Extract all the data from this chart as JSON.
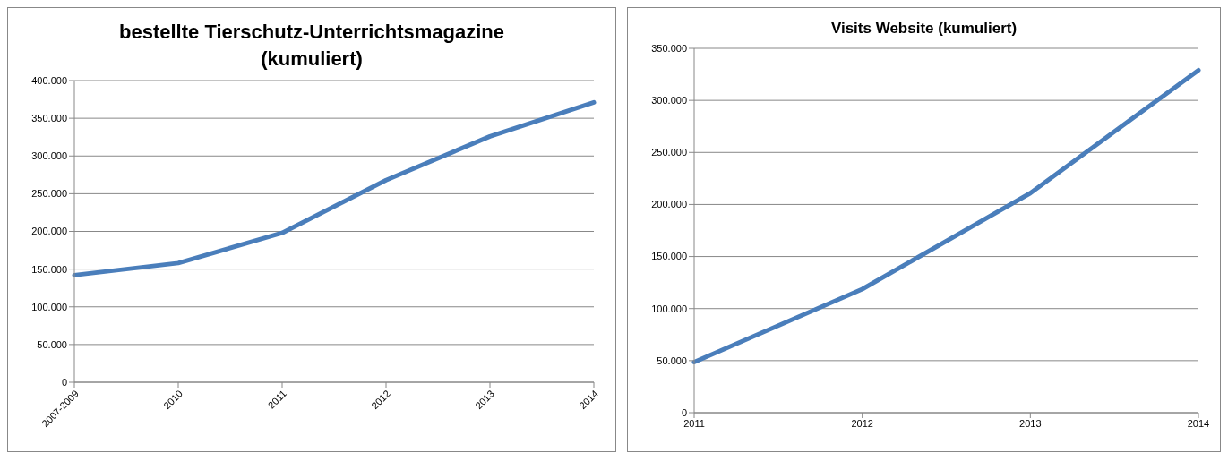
{
  "chart_data": [
    {
      "type": "line",
      "title": "bestellte Tierschutz-Unterrichtsmagazine (kumuliert)",
      "categories": [
        "2007-2009",
        "2010",
        "2011",
        "2012",
        "2013",
        "2014"
      ],
      "series": [
        {
          "color": "#4a7ebb",
          "values": [
            142000,
            158000,
            198000,
            268000,
            326000,
            371000
          ]
        }
      ],
      "ylim": [
        0,
        400000
      ],
      "yticks": [
        0,
        {
          "value": 50000,
          "label": "50.000"
        },
        {
          "value": 100000,
          "label": "100.000"
        },
        {
          "value": 150000,
          "label": "150.000"
        },
        {
          "value": 200000,
          "label": "200.000"
        },
        {
          "value": 250000,
          "label": "250.000"
        },
        {
          "value": 300000,
          "label": "300.000"
        },
        {
          "value": 350000,
          "label": "350.000"
        },
        {
          "value": 400000,
          "label": "400.000"
        }
      ],
      "grid": "y",
      "legend": false,
      "marker": "none",
      "line_style": "solid"
    },
    {
      "type": "line",
      "title": "Visits Website (kumuliert)",
      "categories": [
        "2011",
        "2012",
        "2013",
        "2014"
      ],
      "series": [
        {
          "color": "#4a7ebb",
          "values": [
            48600,
            118700,
            210900,
            329000
          ]
        }
      ],
      "ylim": [
        0,
        350000
      ],
      "yticks": [
        0,
        {
          "value": 50000,
          "label": "50.000"
        },
        {
          "value": 100000,
          "label": "100.000"
        },
        {
          "value": 150000,
          "label": "150.000"
        },
        {
          "value": 200000,
          "label": "200.000"
        },
        {
          "value": 250000,
          "label": "250.000"
        },
        {
          "value": 300000,
          "label": "300.000"
        },
        {
          "value": 350000,
          "label": "350.000"
        }
      ],
      "grid": "y",
      "legend": false,
      "marker": "none",
      "line_style": "solid"
    }
  ]
}
